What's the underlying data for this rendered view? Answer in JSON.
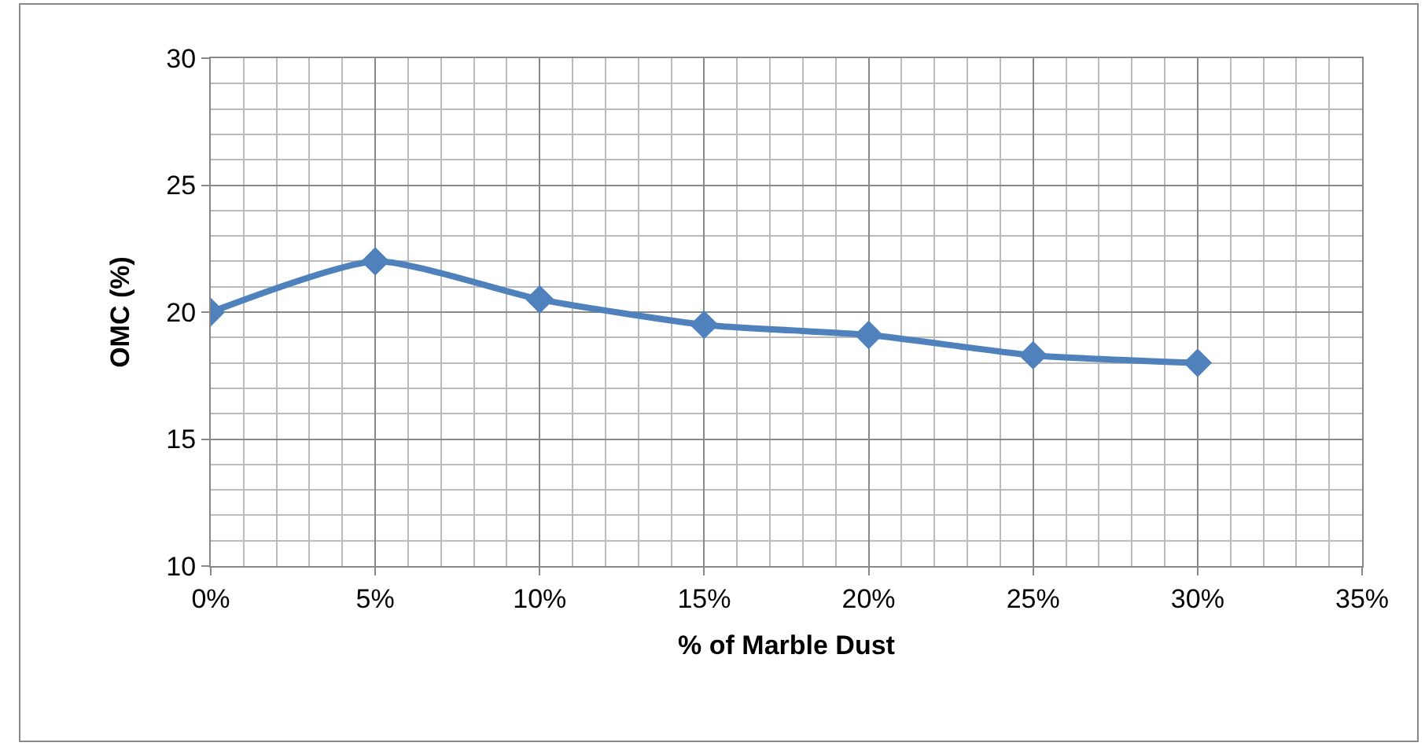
{
  "chart_data": {
    "type": "line",
    "xlabel": "% of Marble Dust",
    "ylabel": "OMC (%)",
    "x": [
      0,
      0.05,
      0.1,
      0.15,
      0.2,
      0.25,
      0.3
    ],
    "series": [
      {
        "color": "#4f81bd",
        "values": [
          20,
          22,
          20.5,
          19.5,
          19.1,
          18.3,
          18.0
        ]
      }
    ],
    "xlim": [
      0,
      0.35
    ],
    "xticks": [
      {
        "value": 0,
        "label": "0%"
      },
      {
        "value": 0.05,
        "label": "5%"
      },
      {
        "value": 0.1,
        "label": "10%"
      },
      {
        "value": 0.15,
        "label": "15%"
      },
      {
        "value": 0.2,
        "label": "20%"
      },
      {
        "value": 0.25,
        "label": "25%"
      },
      {
        "value": 0.3,
        "label": "30%"
      },
      {
        "value": 0.35,
        "label": "35%"
      }
    ],
    "ylim": [
      10,
      30
    ],
    "yticks": [
      10,
      15,
      20,
      25,
      30
    ],
    "grid": true,
    "marker": "diamond",
    "line_style": "solid"
  }
}
